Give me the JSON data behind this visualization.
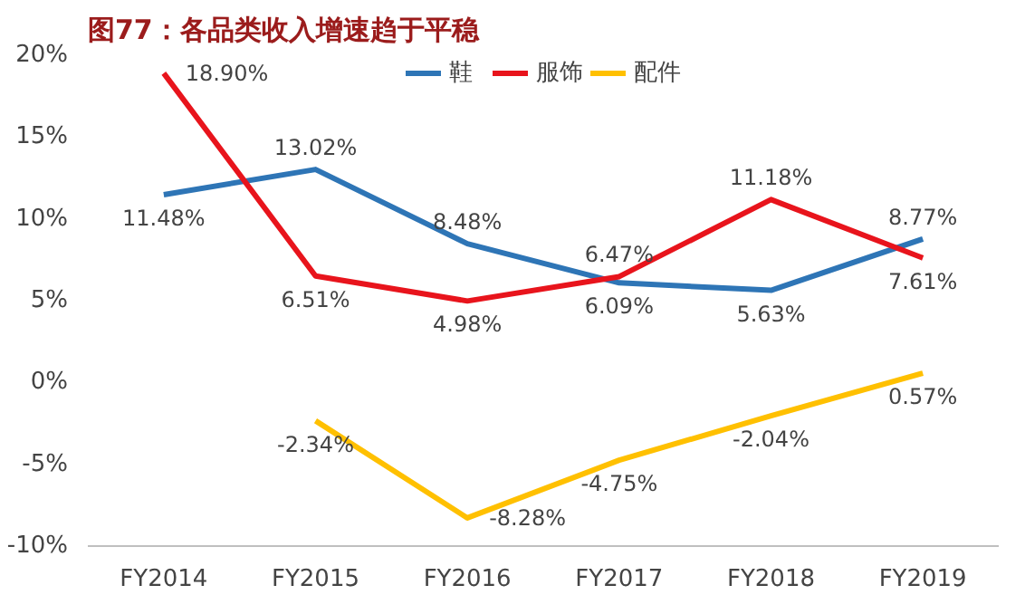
{
  "chart_data": {
    "type": "line",
    "title": "图77：各品类收入增速趋于平稳",
    "categories": [
      "FY2014",
      "FY2015",
      "FY2016",
      "FY2017",
      "FY2018",
      "FY2019"
    ],
    "series": [
      {
        "name": "鞋",
        "color": "#2e75b6",
        "values": [
          11.48,
          13.02,
          8.48,
          6.09,
          5.63,
          8.77
        ],
        "value_labels": [
          "11.48%",
          "13.02%",
          "8.48%",
          "6.09%",
          "5.63%",
          "8.77%"
        ]
      },
      {
        "name": "服饰",
        "color": "#e8141c",
        "values": [
          18.9,
          6.51,
          4.98,
          6.47,
          11.18,
          7.61
        ],
        "value_labels": [
          "18.90%",
          "6.51%",
          "4.98%",
          "6.47%",
          "11.18%",
          "7.61%"
        ]
      },
      {
        "name": "配件",
        "color": "#ffc000",
        "values": [
          null,
          -2.34,
          -8.28,
          -4.75,
          -2.04,
          0.57
        ],
        "value_labels": [
          null,
          "-2.34%",
          "-8.28%",
          "-4.75%",
          "-2.04%",
          "0.57%"
        ]
      }
    ],
    "ylim": [
      -10,
      20
    ],
    "yticks": [
      {
        "value": -10,
        "label": "-10%"
      },
      {
        "value": -5,
        "label": "-5%"
      },
      {
        "value": 0,
        "label": "0%"
      },
      {
        "value": 5,
        "label": "5%"
      },
      {
        "value": 10,
        "label": "10%"
      },
      {
        "value": 15,
        "label": "15%"
      },
      {
        "value": 20,
        "label": "20%"
      }
    ],
    "grid": false,
    "legend": "top",
    "marker": "none",
    "line_style": "solid"
  }
}
